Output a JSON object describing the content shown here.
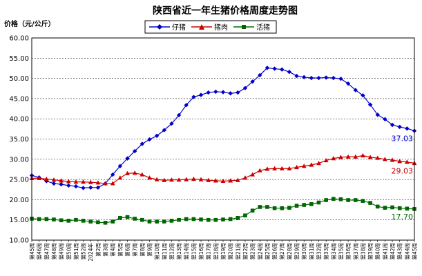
{
  "chart_data": {
    "type": "line",
    "title": "陕西省近一年生猪价格周度走势图",
    "ylabel": "价格（元/公斤）",
    "ylim": [
      10,
      60
    ],
    "yticks": [
      "10.00",
      "15.00",
      "20.00",
      "25.00",
      "30.00",
      "35.00",
      "40.00",
      "45.00",
      "50.00",
      "55.00",
      "60.00"
    ],
    "grid": true,
    "legend_position": "top-center",
    "categories": [
      "第45周",
      "第46周",
      "第47周",
      "第48周",
      "第49周",
      "第50周",
      "第51周",
      "第52周",
      "2024年",
      "第2周",
      "第3周",
      "第4周",
      "第5周",
      "第6周",
      "第7周",
      "第8周",
      "第9周",
      "第10周",
      "第11周",
      "第12周",
      "第13周",
      "第14周",
      "第15周",
      "第16周",
      "第17周",
      "第18周",
      "第19周",
      "第20周",
      "第21周",
      "第22周",
      "第23周",
      "第24周",
      "第25周",
      "第26周",
      "第27周",
      "第28周",
      "第29周",
      "第30周",
      "第31周",
      "第32周",
      "第33周",
      "第34周",
      "第35周",
      "第36周",
      "第37周",
      "第38周",
      "第39周",
      "第40周",
      "第41周",
      "第42周",
      "第43周",
      "第44周",
      "第45周"
    ],
    "series": [
      {
        "name": "仔猪",
        "color": "#0000cc",
        "marker": "diamond",
        "end_label": "37.03",
        "values": [
          26.0,
          25.5,
          24.6,
          24.0,
          23.8,
          23.5,
          23.3,
          22.9,
          23.0,
          23.0,
          24.0,
          26.2,
          28.3,
          30.2,
          32.0,
          33.8,
          34.9,
          35.8,
          37.2,
          38.8,
          40.9,
          43.4,
          45.4,
          45.9,
          46.5,
          46.7,
          46.6,
          46.3,
          46.5,
          47.6,
          49.2,
          50.8,
          52.6,
          52.4,
          52.2,
          51.6,
          50.6,
          50.3,
          50.1,
          50.1,
          50.2,
          50.1,
          49.9,
          48.7,
          47.1,
          45.8,
          43.5,
          41.0,
          39.9,
          38.5,
          38.0,
          37.6,
          37.03
        ]
      },
      {
        "name": "猪肉",
        "color": "#cc0000",
        "marker": "triangle",
        "end_label": "29.03",
        "values": [
          25.3,
          25.3,
          25.1,
          24.9,
          24.7,
          24.5,
          24.4,
          24.4,
          24.3,
          24.2,
          24.0,
          24.0,
          25.4,
          26.5,
          26.6,
          26.2,
          25.4,
          25.0,
          24.8,
          24.9,
          24.9,
          25.0,
          25.1,
          25.0,
          24.8,
          24.7,
          24.6,
          24.7,
          24.8,
          25.4,
          26.2,
          27.2,
          27.6,
          27.7,
          27.7,
          27.7,
          28.0,
          28.3,
          28.6,
          29.0,
          29.7,
          30.2,
          30.5,
          30.6,
          30.6,
          30.9,
          30.5,
          30.3,
          30.0,
          29.8,
          29.5,
          29.3,
          29.03
        ]
      },
      {
        "name": "活猪",
        "color": "#006600",
        "marker": "square",
        "end_label": "17.70",
        "values": [
          15.3,
          15.2,
          15.2,
          15.1,
          14.9,
          14.8,
          15.0,
          14.8,
          14.6,
          14.4,
          14.3,
          14.6,
          15.5,
          15.7,
          15.3,
          15.0,
          14.6,
          14.6,
          14.6,
          14.8,
          15.0,
          15.2,
          15.2,
          15.1,
          15.0,
          15.0,
          15.1,
          15.2,
          15.5,
          16.1,
          17.3,
          18.2,
          18.2,
          17.9,
          17.9,
          18.0,
          18.5,
          18.7,
          18.9,
          19.3,
          19.9,
          20.2,
          20.1,
          19.9,
          19.9,
          19.7,
          19.2,
          18.3,
          18.0,
          18.1,
          17.9,
          17.8,
          17.7
        ]
      }
    ]
  }
}
